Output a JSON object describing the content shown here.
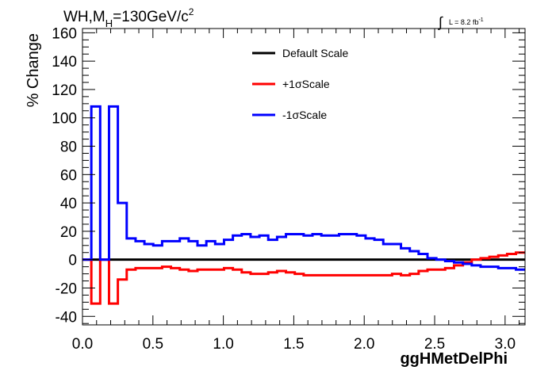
{
  "chart_data": {
    "type": "line",
    "title_main": "WH,M",
    "title_sub": "H",
    "title_rest": "=130GeV/c",
    "title_sup": "2",
    "lumi_int": "∫",
    "lumi_text": "L = 8.2 fb",
    "lumi_sup": "-1",
    "xlabel": "ggHMetDelPhi",
    "ylabel": "% Change",
    "xlim": [
      0,
      3.1416
    ],
    "ylim": [
      -46,
      163
    ],
    "xticks": [
      0.0,
      0.5,
      1.0,
      1.5,
      2.0,
      2.5,
      3.0
    ],
    "xtick_labels": [
      "0.0",
      "0.5",
      "1.0",
      "1.5",
      "2.0",
      "2.5",
      "3.0"
    ],
    "yticks": [
      -40,
      -20,
      0,
      20,
      40,
      60,
      80,
      100,
      120,
      140,
      160
    ],
    "ytick_labels": [
      "-40",
      "-20",
      "0",
      "20",
      "40",
      "60",
      "80",
      "100",
      "120",
      "140",
      "160"
    ],
    "grid": false,
    "legend_position": "top-center",
    "bin_width": 0.0628,
    "series": [
      {
        "name": "Default Scale",
        "color": "#000000",
        "values": [
          0,
          0,
          0,
          0,
          0,
          0,
          0,
          0,
          0,
          0,
          0,
          0,
          0,
          0,
          0,
          0,
          0,
          0,
          0,
          0,
          0,
          0,
          0,
          0,
          0,
          0,
          0,
          0,
          0,
          0,
          0,
          0,
          0,
          0,
          0,
          0,
          0,
          0,
          0,
          0,
          0,
          0,
          0,
          0,
          0,
          0,
          0,
          0,
          0,
          0
        ]
      },
      {
        "name": "+1σScale",
        "color": "#ff0000",
        "values": [
          0,
          -31,
          0,
          -31,
          -14,
          -7,
          -6,
          -6,
          -6,
          -5,
          -6,
          -7,
          -8,
          -7,
          -7,
          -7,
          -6,
          -7,
          -9,
          -10,
          -10,
          -9,
          -8,
          -9,
          -10,
          -11,
          -11,
          -11,
          -11,
          -11,
          -11,
          -11,
          -11,
          -11,
          -11,
          -10,
          -11,
          -10,
          -8,
          -7,
          -7,
          -6,
          -4,
          -2,
          0,
          1,
          2,
          3,
          4,
          5
        ]
      },
      {
        "name": "-1σScale",
        "color": "#0000ff",
        "values": [
          0,
          108,
          0,
          108,
          40,
          15,
          13,
          11,
          10,
          13,
          13,
          15,
          13,
          10,
          13,
          11,
          14,
          17,
          18,
          16,
          17,
          14,
          16,
          18,
          18,
          17,
          18,
          17,
          17,
          18,
          18,
          17,
          15,
          14,
          11,
          11,
          8,
          6,
          4,
          1,
          0,
          -1,
          -2,
          -3,
          -4,
          -5,
          -5,
          -6,
          -6,
          -7
        ]
      }
    ]
  }
}
